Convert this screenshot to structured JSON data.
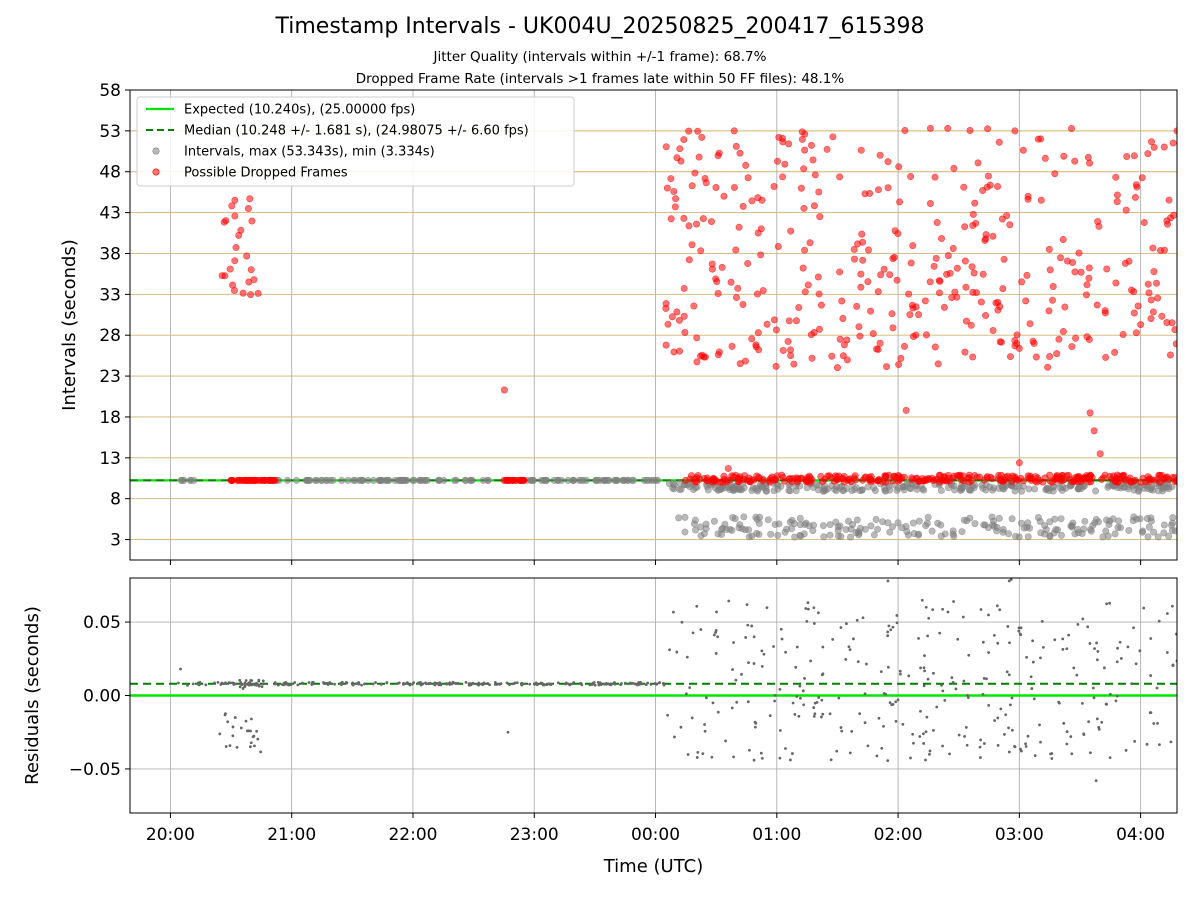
{
  "title": "Timestamp Intervals - UK004U_20250825_200417_615398",
  "subtitle_1": "Jitter Quality (intervals within +/-1 frame): 68.7%",
  "subtitle_2": "Dropped Frame Rate (intervals >1 frames late within 50 FF files): 48.1%",
  "colors": {
    "expected": "#00e600",
    "median": "#008000",
    "intervals": "#808080",
    "dropped": "#ff0000",
    "hgrid": "#d2b46e",
    "vgrid": "#b0b0b0"
  },
  "chart_data": [
    {
      "type": "scatter",
      "xlabel": "Time (UTC)",
      "ylabel": "Intervals (seconds)",
      "xlim": [
        "19:40",
        "04:18"
      ],
      "ylim": [
        0.5,
        58
      ],
      "x_ticks": [
        "20:00",
        "21:00",
        "22:00",
        "23:00",
        "00:00",
        "01:00",
        "02:00",
        "03:00",
        "04:00"
      ],
      "y_ticks": [
        3,
        8,
        13,
        18,
        23,
        28,
        33,
        38,
        43,
        48,
        53,
        58
      ],
      "grid": "on",
      "legend_position": "top-left",
      "legend": [
        {
          "label": "Expected (10.240s), (25.00000 fps)",
          "style": "solid-line",
          "color_key": "expected"
        },
        {
          "label": "Median (10.248 +/- 1.681 s), (24.98075 +/- 6.60 fps)",
          "style": "dashed-line",
          "color_key": "median"
        },
        {
          "label": "Intervals, max (53.343s), min (3.334s)",
          "style": "marker",
          "color_key": "intervals"
        },
        {
          "label": "Possible Dropped Frames",
          "style": "marker",
          "color_key": "dropped"
        }
      ],
      "reference_lines": [
        {
          "name": "Expected",
          "y": 10.24
        },
        {
          "name": "Median",
          "y": 10.248
        }
      ],
      "clusters": [
        {
          "series": "dropped",
          "x_start": "20:25",
          "x_end": "20:44",
          "y_min": 32.5,
          "y_max": 45.5,
          "count": 24,
          "seed": 11
        },
        {
          "series": "dropped",
          "x_start": "20:30",
          "x_end": "20:52",
          "y_min": 10.24,
          "y_max": 10.24,
          "count": 45,
          "seed": 12
        },
        {
          "series": "intervals",
          "x_start": "20:05",
          "x_end": "20:12",
          "y_min": 10.24,
          "y_max": 10.24,
          "count": 6,
          "seed": 13
        },
        {
          "series": "intervals",
          "x_start": "20:52",
          "x_end": "22:45",
          "y_min": 10.24,
          "y_max": 10.24,
          "count": 70,
          "seed": 14
        },
        {
          "series": "dropped",
          "x_start": "22:45",
          "x_end": "22:55",
          "y_min": 10.24,
          "y_max": 10.24,
          "count": 22,
          "seed": 15
        },
        {
          "series": "intervals",
          "x_start": "22:55",
          "x_end": "00:04",
          "y_min": 10.24,
          "y_max": 10.24,
          "count": 50,
          "seed": 16
        },
        {
          "series": "dropped",
          "x_start": "22:45",
          "x_end": "22:46",
          "y_min": 21.3,
          "y_max": 21.3,
          "count": 1,
          "seed": 17
        },
        {
          "series": "intervals",
          "x_start": "00:05",
          "x_end": "04:18",
          "y_min": 8.9,
          "y_max": 9.9,
          "count": 260,
          "seed": 18
        },
        {
          "series": "intervals",
          "x_start": "00:08",
          "x_end": "04:18",
          "y_min": 3.3,
          "y_max": 5.8,
          "count": 200,
          "seed": 19
        },
        {
          "series": "dropped",
          "x_start": "00:06",
          "x_end": "04:18",
          "y_min": 10.0,
          "y_max": 10.9,
          "count": 320,
          "seed": 20
        },
        {
          "series": "dropped",
          "x_start": "00:05",
          "x_end": "04:18",
          "y_min": 24,
          "y_max": 36,
          "count": 190,
          "seed": 21
        },
        {
          "series": "dropped",
          "x_start": "00:05",
          "x_end": "04:18",
          "y_min": 36,
          "y_max": 53.3,
          "count": 190,
          "seed": 22
        }
      ],
      "extra_points": [
        {
          "series": "dropped",
          "x": "02:04",
          "y": 18.8
        },
        {
          "series": "dropped",
          "x": "03:35",
          "y": 18.5
        },
        {
          "series": "dropped",
          "x": "03:37",
          "y": 16.3
        },
        {
          "series": "dropped",
          "x": "03:40",
          "y": 13.5
        },
        {
          "series": "dropped",
          "x": "03:00",
          "y": 12.4
        },
        {
          "series": "dropped",
          "x": "00:36",
          "y": 11.7
        },
        {
          "series": "dropped",
          "x": "04:18",
          "y": 53.0
        },
        {
          "series": "dropped",
          "x": "02:16",
          "y": 53.3
        }
      ]
    },
    {
      "type": "scatter",
      "xlabel": "Time (UTC)",
      "ylabel": "Residuals (seconds)",
      "xlim": [
        "19:40",
        "04:18"
      ],
      "ylim": [
        -0.08,
        0.08
      ],
      "x_ticks": [
        "20:00",
        "21:00",
        "22:00",
        "23:00",
        "00:00",
        "01:00",
        "02:00",
        "03:00",
        "04:00"
      ],
      "y_ticks": [
        -0.05,
        0.0,
        0.05
      ],
      "y_tick_labels": [
        "−0.05",
        "0.00",
        "0.05"
      ],
      "grid": "on",
      "reference_lines": [
        {
          "name": "Zero",
          "y": 0.0
        },
        {
          "name": "Median residual",
          "y": 0.008
        }
      ],
      "clusters": [
        {
          "series": "intervals",
          "x_start": "20:03",
          "x_end": "00:05",
          "y_min": 0.007,
          "y_max": 0.009,
          "count": 230,
          "seed": 31
        },
        {
          "series": "intervals",
          "x_start": "20:24",
          "x_end": "20:46",
          "y_min": -0.039,
          "y_max": -0.012,
          "count": 24,
          "seed": 32
        },
        {
          "series": "intervals",
          "x_start": "20:30",
          "x_end": "20:48",
          "y_min": 0.004,
          "y_max": 0.011,
          "count": 14,
          "seed": 33
        },
        {
          "series": "intervals",
          "x_start": "00:05",
          "x_end": "04:18",
          "y_min": -0.045,
          "y_max": 0.065,
          "count": 330,
          "seed": 34
        }
      ],
      "extra_points": [
        {
          "series": "intervals",
          "x": "20:05",
          "y": 0.018
        },
        {
          "series": "intervals",
          "x": "22:47",
          "y": -0.025
        },
        {
          "series": "intervals",
          "x": "03:38",
          "y": -0.058
        },
        {
          "series": "intervals",
          "x": "01:55",
          "y": 0.078
        },
        {
          "series": "intervals",
          "x": "02:56",
          "y": 0.079
        },
        {
          "series": "intervals",
          "x": "02:55",
          "y": 0.078
        }
      ]
    }
  ]
}
